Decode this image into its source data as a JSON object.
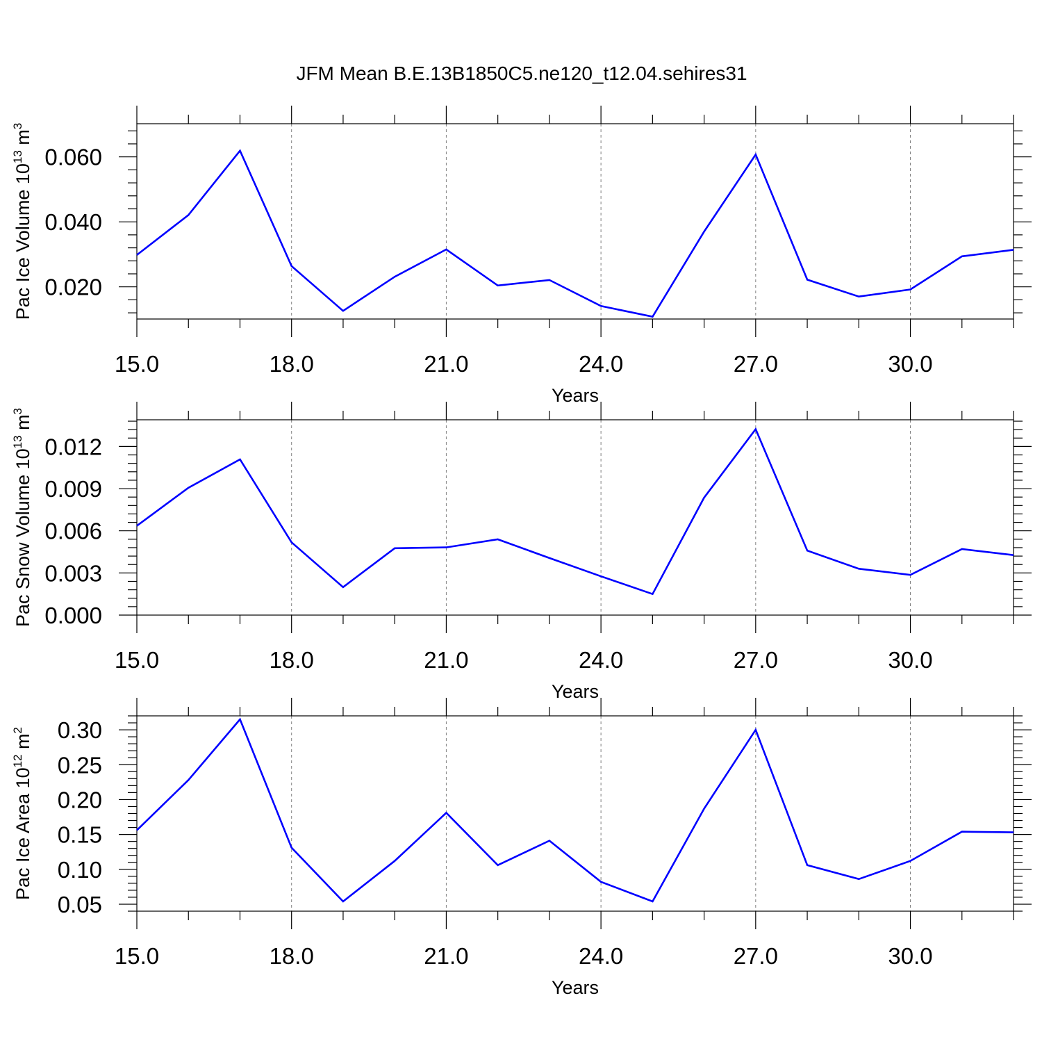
{
  "title": "JFM Mean B.E.13B1850C5.ne120_t12.04.sehires31",
  "colors": {
    "line": "#0000ff",
    "axis": "#000000",
    "grid": "#808080"
  },
  "chart_data": [
    {
      "type": "line",
      "ylabel": {
        "text": "Pac Ice Volume 10",
        "sup": "13",
        "unit": " m",
        "unit_sup": "3"
      },
      "xlabel": "Years",
      "xlim": [
        15,
        32
      ],
      "ylim": [
        0.0101,
        0.0702
      ],
      "yticks": [
        "0.020",
        "0.040",
        "0.060"
      ],
      "xticks": [
        "15.0",
        "18.0",
        "21.0",
        "24.0",
        "27.0",
        "30.0"
      ],
      "x": [
        15,
        16,
        17,
        18,
        19,
        20,
        21,
        22,
        23,
        24,
        25,
        26,
        27,
        28,
        29,
        30,
        31,
        32
      ],
      "values": [
        0.0298,
        0.0421,
        0.0619,
        0.0264,
        0.0126,
        0.0231,
        0.0315,
        0.0204,
        0.0221,
        0.0141,
        0.0108,
        0.037,
        0.0607,
        0.0222,
        0.017,
        0.0192,
        0.0294,
        0.0314
      ],
      "grid": "vertical dashed at major x ticks"
    },
    {
      "type": "line",
      "ylabel": {
        "text": "Pac Snow Volume 10",
        "sup": "13",
        "unit": " m",
        "unit_sup": "3"
      },
      "xlabel": "Years",
      "xlim": [
        15,
        32
      ],
      "ylim": [
        0.0,
        0.0139
      ],
      "yticks": [
        "0.000",
        "0.003",
        "0.006",
        "0.009",
        "0.012"
      ],
      "xticks": [
        "15.0",
        "18.0",
        "21.0",
        "24.0",
        "27.0",
        "30.0"
      ],
      "x": [
        15,
        16,
        17,
        18,
        19,
        20,
        21,
        22,
        23,
        24,
        25,
        26,
        27,
        28,
        29,
        30,
        31,
        32
      ],
      "values": [
        0.00635,
        0.00906,
        0.01108,
        0.00518,
        0.00199,
        0.00476,
        0.00482,
        0.00539,
        0.00406,
        0.00276,
        0.0015,
        0.00836,
        0.01323,
        0.00459,
        0.0033,
        0.00286,
        0.0047,
        0.00427
      ],
      "grid": "vertical dashed at major x ticks"
    },
    {
      "type": "line",
      "ylabel": {
        "text": "Pac Ice Area 10",
        "sup": "12",
        "unit": " m",
        "unit_sup": "2"
      },
      "xlabel": "Years",
      "xlim": [
        15,
        32
      ],
      "ylim": [
        0.04,
        0.32
      ],
      "yticks": [
        "0.05",
        "0.10",
        "0.15",
        "0.20",
        "0.25",
        "0.30"
      ],
      "xticks": [
        "15.0",
        "18.0",
        "21.0",
        "24.0",
        "27.0",
        "30.0"
      ],
      "x": [
        15,
        16,
        17,
        18,
        19,
        20,
        21,
        22,
        23,
        24,
        25,
        26,
        27,
        28,
        29,
        30,
        31,
        32
      ],
      "values": [
        0.156,
        0.228,
        0.315,
        0.131,
        0.054,
        0.112,
        0.181,
        0.106,
        0.141,
        0.082,
        0.054,
        0.187,
        0.3,
        0.106,
        0.086,
        0.112,
        0.154,
        0.153
      ],
      "grid": "vertical dashed at major x ticks"
    }
  ]
}
